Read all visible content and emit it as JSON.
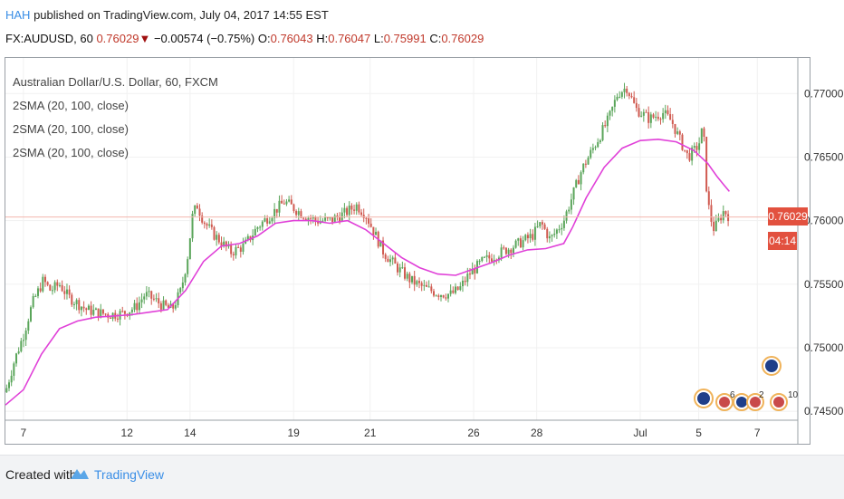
{
  "header": {
    "author": "HAH",
    "published_text": " published on TradingView.com, July 04, 2017 14:55 EST",
    "symbol": "FX:AUDUSD, 60",
    "last": "0.76029",
    "change_arrow": "▼",
    "change": "−0.00574 (−0.75%)",
    "open_label": "O:",
    "open": "0.76043",
    "high_label": "H:",
    "high": "0.76047",
    "low_label": "L:",
    "low": "0.75991",
    "close_label": "C:",
    "close": "0.76029"
  },
  "legend": {
    "title": "Australian Dollar/U.S. Dollar, 60, FXCM",
    "indicators": [
      "2SMA (20, 100, close)",
      "2SMA (20, 100, close)",
      "2SMA (20, 100, close)"
    ]
  },
  "price_label": {
    "value": "0.76029",
    "timer": "04:14"
  },
  "footer": {
    "created_with": "Created with",
    "brand": "TradingView"
  },
  "events": {
    "counts": [
      "6",
      "2",
      "10"
    ]
  },
  "colors": {
    "up": "#5aa55a",
    "down": "#d05a50",
    "sma": "#e040d8",
    "price_line": "#f3b6ad",
    "price_tag": "#e2513f",
    "grid": "#f1f1f1",
    "axis_text": "#333333",
    "brand": "#3a8ee6"
  },
  "chart_data": {
    "type": "candlestick",
    "symbol": "FX:AUDUSD",
    "interval": "60",
    "y_axis": {
      "ticks": [
        0.745,
        0.75,
        0.755,
        0.76,
        0.765,
        0.77
      ],
      "tick_labels": [
        "0.74500",
        "0.75000",
        "0.75500",
        "0.76000",
        "0.76500",
        "0.77000"
      ],
      "range": [
        0.7443,
        0.7728
      ]
    },
    "x_axis": {
      "ticks": [
        0,
        1.15,
        1.85,
        3.0,
        3.85,
        5.0,
        5.7,
        6.85,
        7.5,
        8.15
      ]
    },
    "x_tick_labels": [
      "7",
      "12",
      "14",
      "19",
      "21",
      "26",
      "28",
      "Jul",
      "5",
      "7"
    ],
    "x_range": [
      -0.2,
      8.6
    ],
    "last_price": 0.76029,
    "price_path": [
      [
        -0.2,
        0.7465
      ],
      [
        -0.1,
        0.749
      ],
      [
        0.0,
        0.751
      ],
      [
        0.1,
        0.7535
      ],
      [
        0.22,
        0.7553
      ],
      [
        0.3,
        0.7545
      ],
      [
        0.4,
        0.755
      ],
      [
        0.5,
        0.754
      ],
      [
        0.6,
        0.7535
      ],
      [
        0.7,
        0.753
      ],
      [
        0.8,
        0.7528
      ],
      [
        0.95,
        0.7526
      ],
      [
        1.1,
        0.7527
      ],
      [
        1.25,
        0.7532
      ],
      [
        1.35,
        0.7542
      ],
      [
        1.45,
        0.7538
      ],
      [
        1.55,
        0.7533
      ],
      [
        1.65,
        0.753
      ],
      [
        1.75,
        0.7545
      ],
      [
        1.82,
        0.757
      ],
      [
        1.88,
        0.7605
      ],
      [
        1.93,
        0.7612
      ],
      [
        2.0,
        0.76
      ],
      [
        2.1,
        0.759
      ],
      [
        2.2,
        0.7583
      ],
      [
        2.3,
        0.7575
      ],
      [
        2.45,
        0.758
      ],
      [
        2.6,
        0.7595
      ],
      [
        2.75,
        0.7605
      ],
      [
        2.9,
        0.7615
      ],
      [
        3.0,
        0.761
      ],
      [
        3.1,
        0.7605
      ],
      [
        3.25,
        0.76
      ],
      [
        3.4,
        0.76
      ],
      [
        3.55,
        0.7605
      ],
      [
        3.7,
        0.7612
      ],
      [
        3.8,
        0.7605
      ],
      [
        3.9,
        0.759
      ],
      [
        4.0,
        0.7575
      ],
      [
        4.15,
        0.7563
      ],
      [
        4.3,
        0.7553
      ],
      [
        4.45,
        0.7547
      ],
      [
        4.6,
        0.7543
      ],
      [
        4.75,
        0.7542
      ],
      [
        4.85,
        0.7547
      ],
      [
        4.95,
        0.7558
      ],
      [
        5.1,
        0.7568
      ],
      [
        5.3,
        0.7575
      ],
      [
        5.5,
        0.7582
      ],
      [
        5.65,
        0.7588
      ],
      [
        5.75,
        0.7598
      ],
      [
        5.85,
        0.7585
      ],
      [
        6.0,
        0.76
      ],
      [
        6.1,
        0.762
      ],
      [
        6.2,
        0.764
      ],
      [
        6.35,
        0.766
      ],
      [
        6.5,
        0.768
      ],
      [
        6.6,
        0.77
      ],
      [
        6.7,
        0.7705
      ],
      [
        6.8,
        0.7688
      ],
      [
        6.95,
        0.768
      ],
      [
        7.1,
        0.7685
      ],
      [
        7.2,
        0.7678
      ],
      [
        7.3,
        0.7662
      ],
      [
        7.38,
        0.765
      ],
      [
        7.45,
        0.7655
      ],
      [
        7.5,
        0.766
      ],
      [
        7.55,
        0.7675
      ],
      [
        7.58,
        0.763
      ],
      [
        7.62,
        0.7605
      ],
      [
        7.67,
        0.7593
      ],
      [
        7.72,
        0.76
      ],
      [
        7.78,
        0.7608
      ],
      [
        7.84,
        0.7603
      ]
    ],
    "sma_path": [
      [
        -0.2,
        0.7455
      ],
      [
        0.0,
        0.7467
      ],
      [
        0.2,
        0.7495
      ],
      [
        0.4,
        0.7515
      ],
      [
        0.6,
        0.7521
      ],
      [
        0.8,
        0.7524
      ],
      [
        1.0,
        0.7525
      ],
      [
        1.2,
        0.7526
      ],
      [
        1.4,
        0.7528
      ],
      [
        1.6,
        0.753
      ],
      [
        1.8,
        0.7545
      ],
      [
        2.0,
        0.7568
      ],
      [
        2.2,
        0.758
      ],
      [
        2.4,
        0.7582
      ],
      [
        2.6,
        0.7588
      ],
      [
        2.8,
        0.7598
      ],
      [
        3.0,
        0.76
      ],
      [
        3.2,
        0.76
      ],
      [
        3.4,
        0.7598
      ],
      [
        3.6,
        0.76
      ],
      [
        3.8,
        0.7593
      ],
      [
        4.0,
        0.7582
      ],
      [
        4.2,
        0.7571
      ],
      [
        4.4,
        0.7563
      ],
      [
        4.6,
        0.7558
      ],
      [
        4.8,
        0.7557
      ],
      [
        5.0,
        0.7562
      ],
      [
        5.2,
        0.7567
      ],
      [
        5.4,
        0.7573
      ],
      [
        5.6,
        0.7577
      ],
      [
        5.8,
        0.7578
      ],
      [
        6.0,
        0.7582
      ],
      [
        6.1,
        0.7595
      ],
      [
        6.25,
        0.7618
      ],
      [
        6.45,
        0.7642
      ],
      [
        6.65,
        0.7657
      ],
      [
        6.85,
        0.7663
      ],
      [
        7.05,
        0.7664
      ],
      [
        7.25,
        0.7662
      ],
      [
        7.45,
        0.7655
      ],
      [
        7.6,
        0.7645
      ],
      [
        7.7,
        0.7635
      ],
      [
        7.78,
        0.7628
      ],
      [
        7.84,
        0.7623
      ]
    ]
  }
}
